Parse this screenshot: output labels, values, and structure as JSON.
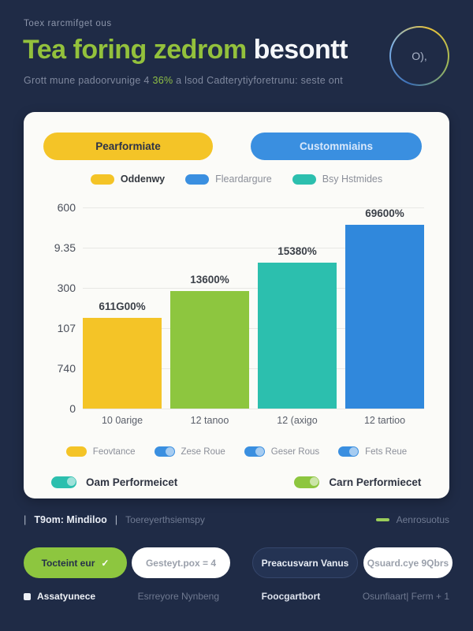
{
  "header": {
    "eyebrow": "Toex rarcmifget ous",
    "title_green": "Tea foring zedrom",
    "title_white": " besontt",
    "subtitle_pre": "Grott mune padoorvunige 4 ",
    "subtitle_highlight": "36%",
    "subtitle_post": " a lsod Cadterytiyforetrunu: seste ont",
    "badge_text": "O),"
  },
  "toolbar": {
    "performance_label": "Pearformiate",
    "customers_label": "Custommiains",
    "performance_color": "#f4c427",
    "customers_color": "#3a8fe0"
  },
  "legend_top": {
    "items": [
      {
        "label": "Oddenwy",
        "color": "#f4c427"
      },
      {
        "label": "Fleardargure",
        "color": "#3a8fe0"
      },
      {
        "label": "Bsy Hstmides",
        "color": "#2cbfae"
      }
    ]
  },
  "chart_data": {
    "type": "bar",
    "title": "",
    "xlabel": "",
    "ylabel": "",
    "categories": [
      "10 0arige",
      "12 tanoo",
      "12 (axigo",
      "12 tartioo"
    ],
    "values": [
      270,
      350,
      435,
      550
    ],
    "bar_labels": [
      "611G00%",
      "13600%",
      "15380%",
      "69600%"
    ],
    "bar_colors": [
      "#f4c427",
      "#8dc63f",
      "#2cbfae",
      "#3088dc"
    ],
    "y_ticks": [
      "600",
      "9.35",
      "300",
      "107",
      "740",
      "0"
    ],
    "ylim": [
      0,
      600
    ],
    "grid": true,
    "legend_position": "below"
  },
  "legend_mid": {
    "items": [
      {
        "label": "Feovtance",
        "color": "#f4c427",
        "toggle": false
      },
      {
        "label": "Zese Roue",
        "color": "#3a8fe0",
        "toggle": true
      },
      {
        "label": "Geser Rous",
        "color": "#3a8fe0",
        "toggle": true
      },
      {
        "label": "Fets Reue",
        "color": "#3a8fe0",
        "toggle": true
      }
    ]
  },
  "legend_bottom": {
    "items": [
      {
        "label": "Oam Performeicet",
        "color": "#2cbfae"
      },
      {
        "label": "Carn Performiecet",
        "color": "#8dc63f"
      }
    ]
  },
  "footer": {
    "meta": {
      "divider": "|",
      "item1": "T9om: Mindiloo",
      "item2": "Toereyerthsiemspy",
      "right_label": "Aenrosuotus",
      "accent_color": "#9acd5a"
    },
    "buttons": [
      {
        "label": "Tocteint eur"
      },
      {
        "label": "Gesteyt.pox = 4"
      },
      {
        "label": "Preacusvarn Vanus"
      },
      {
        "label": "Qsuard.cye 9Qbrs"
      }
    ],
    "bottom_links": [
      "Assatyunece",
      "Esrreyore Nynbeng",
      "Foocgartbort",
      "Osunfiaart| Ferm + 1"
    ]
  }
}
